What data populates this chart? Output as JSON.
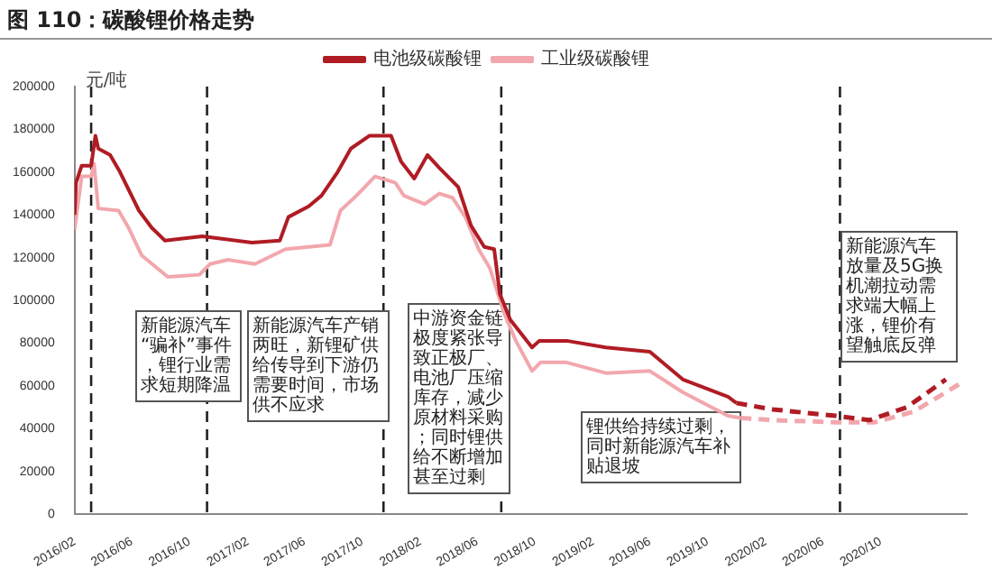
{
  "chart_data": {
    "type": "line",
    "title": "图 110：碳酸锂价格走势",
    "ylabel": "元/吨",
    "xlim": [
      "2016-02",
      "2021-04"
    ],
    "xticks": [
      {
        "value": "2016-02",
        "label": "2016/02"
      },
      {
        "value": "2016-06",
        "label": "2016/06"
      },
      {
        "value": "2016-10",
        "label": "2016/10"
      },
      {
        "value": "2017-02",
        "label": "2017/02"
      },
      {
        "value": "2017-06",
        "label": "2017/06"
      },
      {
        "value": "2017-10",
        "label": "2017/10"
      },
      {
        "value": "2018-02",
        "label": "2018/02"
      },
      {
        "value": "2018-06",
        "label": "2018/06"
      },
      {
        "value": "2018-10",
        "label": "2018/10"
      },
      {
        "value": "2019-02",
        "label": "2019/02"
      },
      {
        "value": "2019-06",
        "label": "2019/06"
      },
      {
        "value": "2019-10",
        "label": "2019/10"
      },
      {
        "value": "2020-02",
        "label": "2020/02"
      },
      {
        "value": "2020-06",
        "label": "2020/06"
      },
      {
        "value": "2020-10",
        "label": "2020/10"
      }
    ],
    "ylim": [
      0,
      200000
    ],
    "yticks": [
      0,
      20000,
      40000,
      60000,
      80000,
      100000,
      120000,
      140000,
      160000,
      180000,
      200000
    ],
    "grid": false,
    "legend": "top",
    "marker": "none",
    "series": [
      {
        "name": "电池级碳酸锂",
        "color": "#b01c24",
        "line_style": "solid",
        "x": [
          "2016-02-01",
          "2016-02-04",
          "2016-02-16",
          "2016-03-07",
          "2016-03-16",
          "2016-03-22",
          "2016-04-16",
          "2016-05-07",
          "2016-06-16",
          "2016-07-13",
          "2016-08-10",
          "2016-10-28",
          "2017-02-10",
          "2017-04-10",
          "2017-04-28",
          "2017-06-10",
          "2017-07-07",
          "2017-08-10",
          "2017-09-07",
          "2017-10-16",
          "2017-12-01",
          "2017-12-22",
          "2018-01-19",
          "2018-02-16",
          "2018-03-13",
          "2018-04-22",
          "2018-05-19",
          "2018-06-16",
          "2018-07-07",
          "2018-07-19",
          "2018-08-10",
          "2018-09-25",
          "2018-10-10",
          "2018-12-10",
          "2019-02-28",
          "2019-06-01",
          "2019-08-10",
          "2019-11-13",
          "2019-12-01"
        ],
        "values": [
          140000,
          155000,
          163000,
          163000,
          177000,
          171000,
          168000,
          160000,
          142000,
          134000,
          128000,
          130000,
          127000,
          128000,
          139000,
          144000,
          149000,
          160000,
          171000,
          177000,
          177000,
          165000,
          157000,
          168000,
          162000,
          153000,
          135000,
          125000,
          124000,
          103000,
          91000,
          78000,
          81000,
          81000,
          78000,
          76000,
          63000,
          55000,
          52000
        ]
      },
      {
        "color": "#b01c24",
        "line_style": "dashed",
        "x": [
          "2019-12-01",
          "2020-02-16",
          "2020-06-28",
          "2020-09-07",
          "2020-11-25",
          "2021-02-16"
        ],
        "values": [
          52000,
          49000,
          46000,
          44000,
          50000,
          63000
        ]
      },
      {
        "name": "工业级碳酸锂",
        "color": "#f2a7ad",
        "line_style": "solid",
        "x": [
          "2016-02-01",
          "2016-02-16",
          "2016-03-07",
          "2016-03-13",
          "2016-03-22",
          "2016-05-04",
          "2016-05-25",
          "2016-06-22",
          "2016-08-16",
          "2016-10-22",
          "2016-11-13",
          "2016-12-22",
          "2017-02-16",
          "2017-04-22",
          "2017-07-25",
          "2017-08-16",
          "2017-09-19",
          "2017-10-28",
          "2017-12-10",
          "2017-12-28",
          "2018-02-10",
          "2018-03-13",
          "2018-04-10",
          "2018-05-07",
          "2018-06-04",
          "2018-06-28",
          "2018-07-28",
          "2018-08-22",
          "2018-09-25",
          "2018-10-13",
          "2018-12-07",
          "2019-02-28",
          "2019-06-01",
          "2019-08-10",
          "2019-11-13",
          "2019-12-10"
        ],
        "values": [
          133000,
          158000,
          158000,
          164000,
          143000,
          142000,
          134000,
          121000,
          111000,
          112000,
          117000,
          119000,
          117000,
          124000,
          126000,
          142000,
          149000,
          158000,
          155000,
          149000,
          145000,
          150000,
          148000,
          139000,
          124000,
          115000,
          94000,
          81000,
          67000,
          71000,
          71000,
          66000,
          67000,
          57000,
          46000,
          45000
        ]
      },
      {
        "color": "#f2a7ad",
        "line_style": "dashed",
        "x": [
          "2019-12-10",
          "2020-02-16",
          "2020-06-28",
          "2020-09-19",
          "2020-12-10",
          "2021-03-25"
        ],
        "values": [
          45000,
          44000,
          43000,
          43000,
          48000,
          62000
        ]
      }
    ],
    "ref_lines": [
      {
        "axis": "x",
        "value": "2016-03-07",
        "color": "#222222",
        "line_style": "dashed"
      },
      {
        "axis": "x",
        "value": "2016-11-07",
        "color": "#222222",
        "line_style": "dashed"
      },
      {
        "axis": "x",
        "value": "2017-11-15",
        "color": "#222222",
        "line_style": "dashed"
      },
      {
        "axis": "x",
        "value": "2018-07-22",
        "color": "#222222",
        "line_style": "dashed"
      },
      {
        "axis": "x",
        "value": "2020-07-07",
        "color": "#222222",
        "line_style": "dashed"
      }
    ],
    "annotations": [
      "新能源汽车“骗补”事件，锂行业需求短期降温",
      "新能源汽车产销两旺，新锂矿供给传导到下游仍需要时间，市场供不应求",
      "中游资金链极度紧张导致正极厂、电池厂压缩库存，减少原材料采购；同时锂供给不断增加甚至过剩",
      "锂供给持续过剩，同时新能源汽车补贴退坡",
      "新能源汽车放量及5G换机潮拉动需求端大幅上涨，锂价有望触底反弹"
    ]
  }
}
